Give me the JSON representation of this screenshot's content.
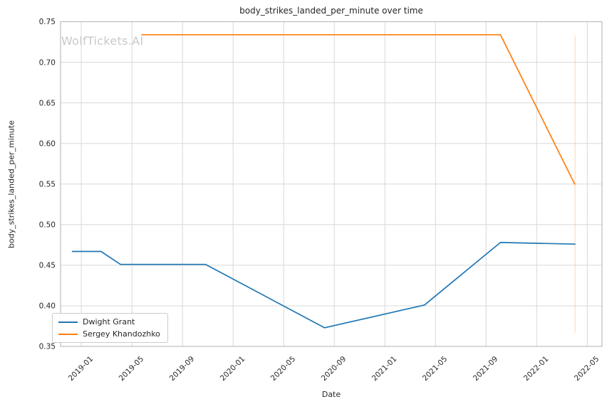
{
  "chart_data": {
    "type": "line",
    "title": "body_strikes_landed_per_minute over time",
    "watermark": "WolfTickets.AI",
    "xlabel": "Date",
    "ylabel": "body_strikes_landed_per_minute",
    "ylim": [
      0.35,
      0.75
    ],
    "yticks": [
      0.35,
      0.4,
      0.45,
      0.5,
      0.55,
      0.6,
      0.65,
      0.7,
      0.75
    ],
    "xticks": [
      "2019-01",
      "2019-05",
      "2019-09",
      "2020-01",
      "2020-05",
      "2020-09",
      "2021-01",
      "2021-05",
      "2021-09",
      "2022-01",
      "2022-05"
    ],
    "xlim": [
      "2018-11-12",
      "2022-06-06"
    ],
    "grid": true,
    "legend_position": "lower left",
    "colors": {
      "grid": "#d8d8d8",
      "spine": "#bcbcbc",
      "text": "#262626",
      "watermark": "#c8c8c8",
      "background": "#ffffff"
    },
    "series": [
      {
        "name": "Dwight Grant",
        "color": "#1f77b4",
        "points": [
          {
            "date": "2018-12-10",
            "value": 0.467
          },
          {
            "date": "2019-02-18",
            "value": 0.467
          },
          {
            "date": "2019-04-04",
            "value": 0.451
          },
          {
            "date": "2019-10-26",
            "value": 0.451
          },
          {
            "date": "2020-08-08",
            "value": 0.373
          },
          {
            "date": "2021-04-05",
            "value": 0.401
          },
          {
            "date": "2021-10-05",
            "value": 0.478
          },
          {
            "date": "2022-04-02",
            "value": 0.476
          }
        ]
      },
      {
        "name": "Sergey Khandozhko",
        "color": "#ff7f0e",
        "points": [
          {
            "date": "2019-05-25",
            "value": 0.734
          },
          {
            "date": "2021-10-05",
            "value": 0.734
          },
          {
            "date": "2022-04-01",
            "value": 0.55
          }
        ]
      }
    ],
    "event_vline": {
      "date": "2022-04-02",
      "value_from": 0.367,
      "value_to": 0.733,
      "color": "#ff7f0e",
      "opacity": 0.28
    }
  }
}
